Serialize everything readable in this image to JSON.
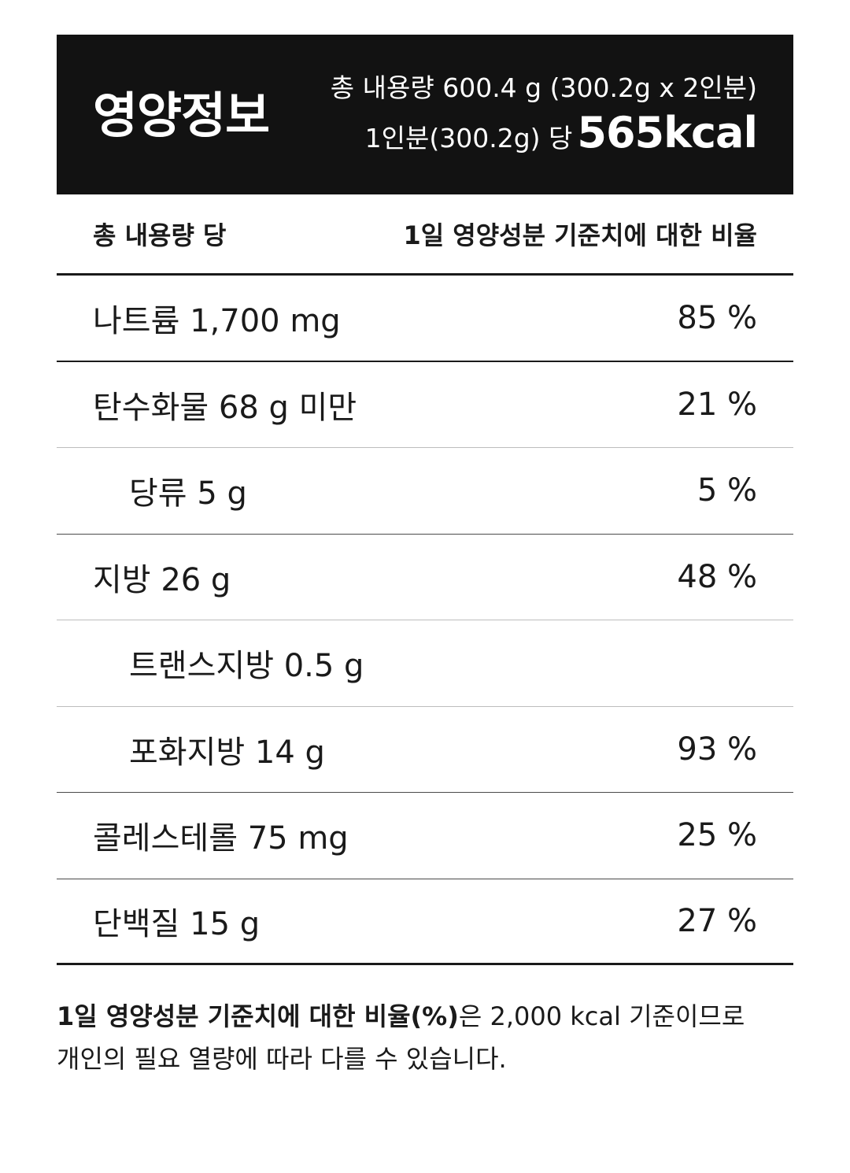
{
  "header": {
    "title": "영양정보",
    "total_amount": "총 내용량 600.4 g (300.2g x 2인분)",
    "serving_label": "1인분(300.2g) 당",
    "kcal": "565kcal"
  },
  "columns": {
    "left": "총 내용량 당",
    "right": "1일 영양성분 기준치에 대한 비율"
  },
  "rows": [
    {
      "name": "나트륨 1,700 mg",
      "percent": "85 %"
    },
    {
      "name": "탄수화물 68 g 미만",
      "percent": "21 %"
    },
    {
      "name": "당류 5 g",
      "percent": "5 %"
    },
    {
      "name": "지방 26 g",
      "percent": "48 %"
    },
    {
      "name": "트랜스지방 0.5 g",
      "percent": ""
    },
    {
      "name": "포화지방 14 g",
      "percent": "93 %"
    },
    {
      "name": "콜레스테롤 75 mg",
      "percent": "25 %"
    },
    {
      "name": "단백질 15 g",
      "percent": "27 %"
    }
  ],
  "footnote": {
    "bold_part": "1일 영양성분 기준치에 대한 비율(%)",
    "rest_line1": "은 2,000 kcal 기준이므로",
    "line2": "개인의 필요 열량에 따라 다를 수 있습니다."
  }
}
